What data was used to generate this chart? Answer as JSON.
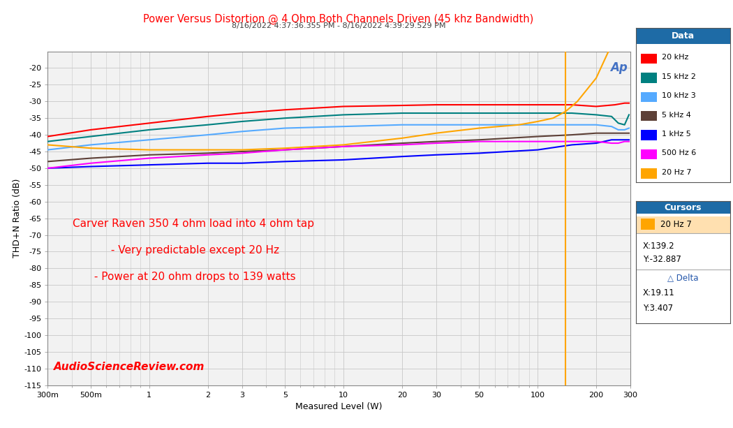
{
  "title": "Power Versus Distortion @ 4 Ohm Both Channels Driven (45 khz Bandwidth)",
  "subtitle": "8/16/2022 4:37:36.355 PM - 8/16/2022 4:39:29.529 PM",
  "xlabel": "Measured Level (W)",
  "ylabel": "THD+N Ratio (dB)",
  "title_color": "#FF0000",
  "subtitle_color": "#404040",
  "annotation_lines": [
    "Carver Raven 350 4 ohm load into 4 ohm tap",
    " - Very predictable except 20 Hz",
    " - Power at 20 ohm drops to 139 watts"
  ],
  "annotation_color": "#FF0000",
  "asr_text": "AudioScienceReview.com",
  "asr_color": "#FF0000",
  "ap_watermark_color": "#4472C4",
  "cursor_x": 139.2,
  "cursor_color": "#FFA500",
  "bg_color": "#FFFFFF",
  "plot_bg_color": "#F2F2F2",
  "grid_color": "#C8C8C8",
  "ylim": [
    -115,
    -15
  ],
  "xlim": [
    0.3,
    300
  ],
  "yticks": [
    -115,
    -110,
    -105,
    -100,
    -95,
    -90,
    -85,
    -80,
    -75,
    -70,
    -65,
    -60,
    -55,
    -50,
    -45,
    -40,
    -35,
    -30,
    -25,
    -20
  ],
  "xtick_vals": [
    0.3,
    0.5,
    1,
    2,
    3,
    5,
    10,
    20,
    30,
    50,
    100,
    200,
    300
  ],
  "xtick_labels": [
    "300m",
    "500m",
    "1",
    "2",
    "3",
    "5",
    "10",
    "20",
    "30",
    "50",
    "100",
    "200",
    "300"
  ],
  "series": [
    {
      "label": "20 kHz",
      "color": "#FF0000",
      "x": [
        0.3,
        0.5,
        1,
        2,
        3,
        5,
        10,
        20,
        30,
        50,
        100,
        150,
        200,
        250,
        280,
        295
      ],
      "y": [
        -40.5,
        -38.5,
        -36.5,
        -34.5,
        -33.5,
        -32.5,
        -31.5,
        -31.2,
        -31.0,
        -31.0,
        -31.0,
        -31.0,
        -31.5,
        -31.0,
        -30.5,
        -30.5
      ]
    },
    {
      "label": "15 kHz 2",
      "color": "#008080",
      "x": [
        0.3,
        0.5,
        1,
        2,
        3,
        5,
        10,
        20,
        30,
        50,
        100,
        150,
        200,
        240,
        260,
        280,
        295
      ],
      "y": [
        -42.0,
        -40.5,
        -38.5,
        -37.0,
        -36.0,
        -35.0,
        -34.0,
        -33.5,
        -33.5,
        -33.5,
        -33.5,
        -33.5,
        -34.0,
        -34.5,
        -36.5,
        -37.0,
        -34.0
      ]
    },
    {
      "label": "10 kHz 3",
      "color": "#55AAFF",
      "x": [
        0.3,
        0.5,
        1,
        2,
        3,
        5,
        10,
        20,
        30,
        50,
        100,
        150,
        200,
        240,
        260,
        280,
        295
      ],
      "y": [
        -44.5,
        -43.0,
        -41.5,
        -40.0,
        -39.0,
        -38.0,
        -37.5,
        -37.0,
        -37.0,
        -37.0,
        -37.0,
        -37.0,
        -37.0,
        -37.5,
        -38.5,
        -38.5,
        -38.0
      ]
    },
    {
      "label": "5 kHz 4",
      "color": "#5D4037",
      "x": [
        0.3,
        0.5,
        1,
        2,
        3,
        5,
        10,
        20,
        30,
        50,
        100,
        150,
        200,
        250,
        280,
        295
      ],
      "y": [
        -48.0,
        -47.0,
        -46.0,
        -45.5,
        -45.0,
        -44.5,
        -43.5,
        -42.5,
        -42.0,
        -41.5,
        -40.5,
        -40.0,
        -39.5,
        -39.5,
        -39.5,
        -39.5
      ]
    },
    {
      "label": "1 kHz 5",
      "color": "#0000FF",
      "x": [
        0.3,
        0.5,
        1,
        2,
        3,
        5,
        10,
        20,
        30,
        50,
        100,
        150,
        200,
        240,
        260,
        280,
        295
      ],
      "y": [
        -50.0,
        -49.5,
        -49.0,
        -48.5,
        -48.5,
        -48.0,
        -47.5,
        -46.5,
        -46.0,
        -45.5,
        -44.5,
        -43.0,
        -42.5,
        -41.5,
        -41.5,
        -41.5,
        -41.5
      ]
    },
    {
      "label": "500 Hz 6",
      "color": "#FF00FF",
      "x": [
        0.3,
        0.5,
        1,
        2,
        3,
        5,
        10,
        20,
        30,
        50,
        100,
        150,
        200,
        240,
        260,
        280,
        295
      ],
      "y": [
        -50.0,
        -48.5,
        -47.0,
        -46.0,
        -45.5,
        -44.5,
        -43.5,
        -43.0,
        -42.5,
        -42.0,
        -42.0,
        -42.0,
        -42.0,
        -42.5,
        -42.5,
        -42.0,
        -42.0
      ]
    },
    {
      "label": "20 Hz 7",
      "color": "#FFA500",
      "x": [
        0.3,
        0.5,
        1,
        2,
        3,
        5,
        10,
        20,
        30,
        50,
        80,
        100,
        120,
        139.2,
        160,
        200,
        240,
        270,
        290,
        295
      ],
      "y": [
        -43.0,
        -44.0,
        -44.5,
        -44.5,
        -44.5,
        -44.0,
        -43.0,
        -41.0,
        -39.5,
        -38.0,
        -37.0,
        -36.0,
        -35.0,
        -33.0,
        -30.0,
        -23.0,
        -13.0,
        -4.0,
        3.0,
        5.0
      ]
    }
  ],
  "legend": {
    "title": "Data",
    "title_bg": "#1E6BA6",
    "box_bg": "#FFFFFF",
    "text_color": "#000000"
  },
  "cursors_box": {
    "title": "Cursors",
    "title_bg": "#1E6BA6",
    "box_bg": "#FFFFFF",
    "label": "20 Hz 7",
    "label_color": "#FFA500",
    "label_row_bg": "#FFE0B0",
    "x_val": "X:139.2",
    "y_val": "Y:-32.887",
    "delta_label": "△ Delta",
    "delta_x": "X:19.11",
    "delta_y": "Y:3.407"
  }
}
